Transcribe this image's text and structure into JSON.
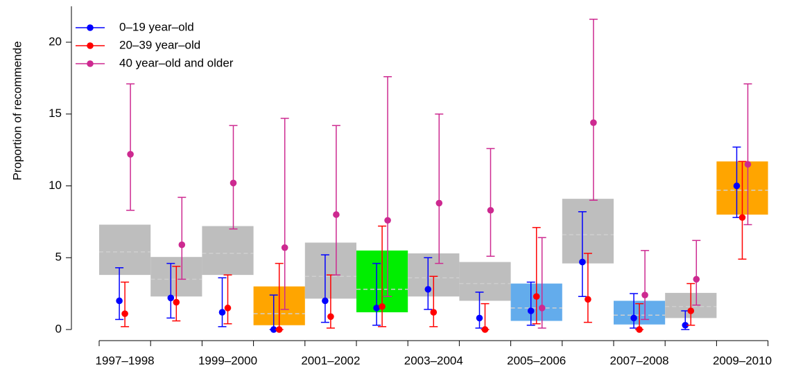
{
  "chart_data": {
    "type": "errorbar",
    "y_label": "Proportion of recommende",
    "categories": [
      "1997–1998",
      null,
      "1999–2000",
      null,
      "2001–2002",
      null,
      "2003–2004",
      null,
      "2005–2006",
      null,
      "2007–2008",
      null,
      "2009–2010"
    ],
    "ylim": [
      -0.3,
      22.5
    ],
    "yticks": [
      0,
      5,
      10,
      15,
      20
    ],
    "legend": "top-left",
    "series": [
      {
        "name": "0–19 year–old",
        "color": "#0000ff",
        "values": [
          2.0,
          2.2,
          1.2,
          0,
          2.0,
          1.5,
          2.8,
          0.8,
          1.3,
          4.7,
          0.8,
          0.3,
          10.0
        ],
        "lower": [
          0.7,
          0.8,
          0.2,
          0,
          0.5,
          0.3,
          1.4,
          0.1,
          0.3,
          2.3,
          0.1,
          0,
          7.8
        ],
        "upper": [
          4.3,
          4.6,
          3.6,
          2.4,
          5.2,
          4.6,
          5.0,
          2.6,
          3.3,
          8.2,
          2.5,
          1.3,
          12.7
        ]
      },
      {
        "name": "20–39 year–old",
        "color": "#ff0000",
        "values": [
          1.1,
          1.9,
          1.5,
          0,
          0.9,
          1.6,
          1.2,
          0,
          2.3,
          2.1,
          0,
          1.3,
          7.8
        ],
        "lower": [
          0.2,
          0.6,
          0.4,
          0,
          0.1,
          0.2,
          0.2,
          0,
          0.4,
          0.5,
          0,
          0.3,
          4.9
        ],
        "upper": [
          3.3,
          4.4,
          3.8,
          4.6,
          3.8,
          7.2,
          3.7,
          1.8,
          7.1,
          5.3,
          1.8,
          3.2,
          11.7
        ]
      },
      {
        "name": "40 year–old and older",
        "color": "#cd2990",
        "values": [
          12.2,
          5.9,
          10.2,
          5.7,
          8.0,
          7.6,
          8.8,
          8.3,
          1.5,
          14.4,
          2.4,
          3.5,
          11.5
        ],
        "lower": [
          8.3,
          3.5,
          7.0,
          1.4,
          3.8,
          2.3,
          4.6,
          5.1,
          0.1,
          9.0,
          0.7,
          1.7,
          7.3
        ],
        "upper": [
          17.1,
          9.2,
          14.2,
          14.7,
          14.2,
          17.6,
          15.0,
          12.6,
          6.4,
          21.6,
          5.5,
          6.2,
          17.1
        ]
      }
    ],
    "bands": {
      "mid_color": "#cfcfcf",
      "low": [
        3.8,
        2.3,
        3.8,
        0.3,
        2.15,
        1.2,
        2.3,
        2.0,
        0.6,
        4.6,
        0.35,
        0.8,
        8.0
      ],
      "high": [
        7.3,
        5.05,
        7.2,
        3.0,
        6.05,
        5.5,
        5.3,
        4.7,
        3.2,
        9.1,
        2.0,
        2.55,
        11.7
      ],
      "mid": [
        5.4,
        3.5,
        5.3,
        1.1,
        3.7,
        2.8,
        3.6,
        3.2,
        1.5,
        6.6,
        1.0,
        1.6,
        9.7
      ],
      "colors": [
        "#bebebe",
        "#bebebe",
        "#bebebe",
        "#ffa500",
        "#bebebe",
        "#00ee00",
        "#bebebe",
        "#bebebe",
        "#63acec",
        "#bebebe",
        "#63acec",
        "#bebebe",
        "#ffa500"
      ]
    }
  }
}
